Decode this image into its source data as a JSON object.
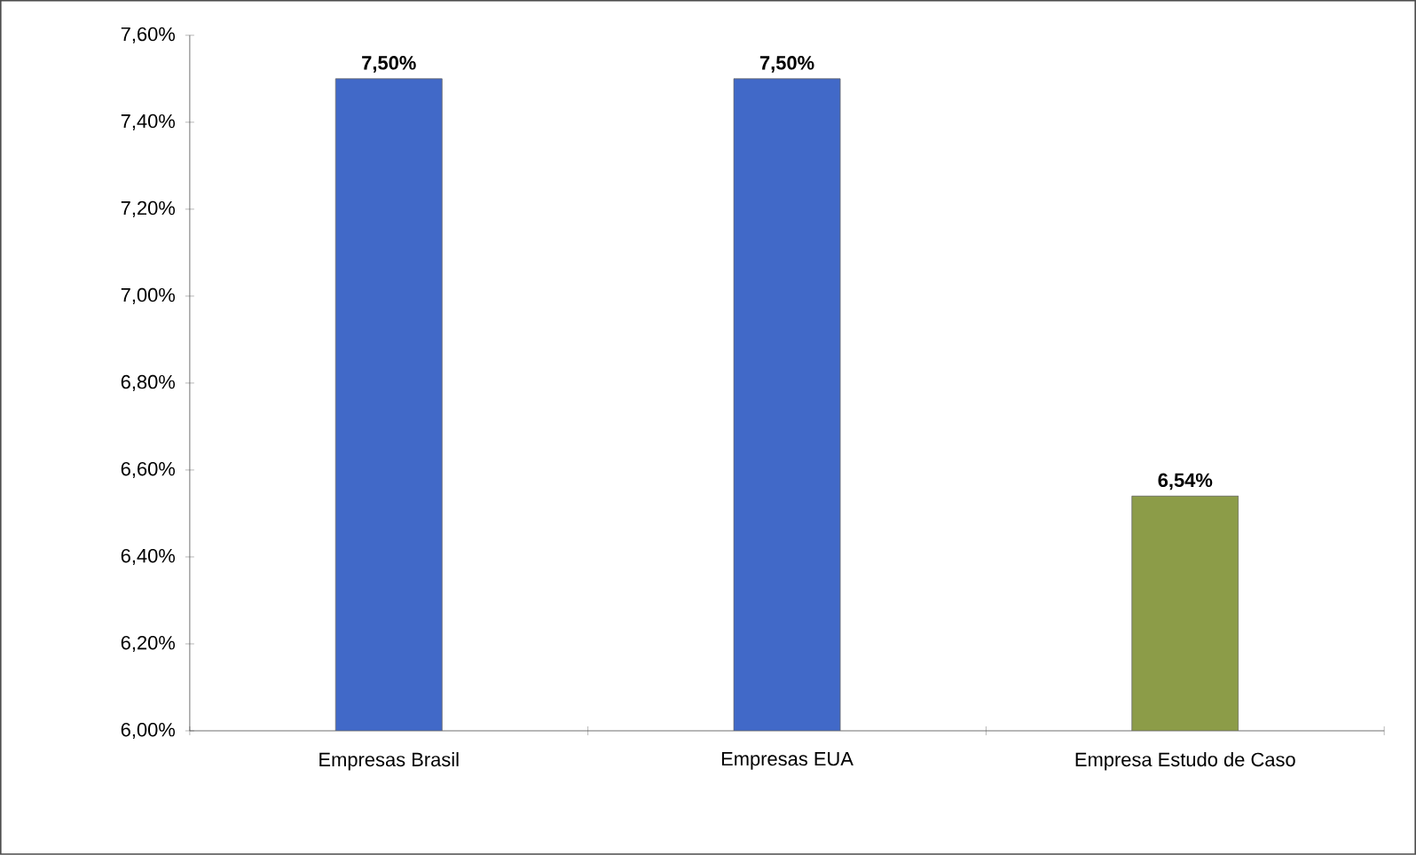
{
  "chart_data": {
    "type": "bar",
    "categories": [
      "Empresas Brasil",
      "Empresas EUA",
      "Empresa Estudo de Caso"
    ],
    "values": [
      7.5,
      7.5,
      6.54
    ],
    "colors": [
      "#4169c8",
      "#4169c8",
      "#8c9c48"
    ],
    "value_labels": [
      "7,50%",
      "7,50%",
      "6,54%"
    ],
    "ylim": [
      6.0,
      7.6
    ],
    "yticks": [
      {
        "value": 6.0,
        "label": "6,00%"
      },
      {
        "value": 6.2,
        "label": "6,20%"
      },
      {
        "value": 6.4,
        "label": "6,40%"
      },
      {
        "value": 6.6,
        "label": "6,60%"
      },
      {
        "value": 6.8,
        "label": "6,80%"
      },
      {
        "value": 7.0,
        "label": "7,00%"
      },
      {
        "value": 7.2,
        "label": "7,20%"
      },
      {
        "value": 7.4,
        "label": "7,40%"
      },
      {
        "value": 7.6,
        "label": "7,60%"
      }
    ],
    "grid": false
  }
}
